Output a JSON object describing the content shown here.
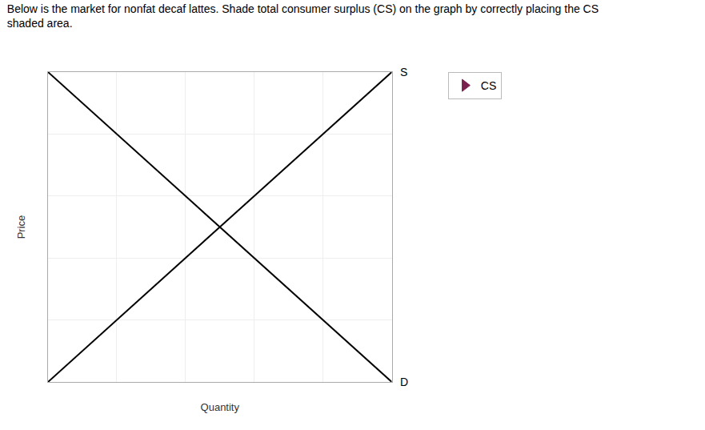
{
  "chart_data": {
    "type": "line",
    "title": "Below is the market for nonfat decaf lattes. Shade total consumer surplus (CS) on the graph by correctly placing the CS\nshaded area.",
    "x_label": "Quantity",
    "y_label": "Price",
    "series": [
      {
        "name": "S",
        "x": [
          0,
          10
        ],
        "values": [
          0,
          10
        ],
        "color": "#000000"
      },
      {
        "name": "D",
        "x": [
          0,
          10
        ],
        "values": [
          10,
          0
        ],
        "color": "#000000"
      },
      {
        "name": "CS",
        "x": [],
        "values": [],
        "color": "#7b2150",
        "marker": "triangle-right"
      }
    ],
    "xlim": [
      0,
      10
    ],
    "ylim": [
      0,
      10
    ],
    "xticks": [
      0,
      2,
      4,
      6,
      8,
      10
    ],
    "yticks": [
      0,
      2,
      4,
      6,
      8,
      10
    ],
    "grid": true,
    "tick_labels": false,
    "legend": "right"
  }
}
